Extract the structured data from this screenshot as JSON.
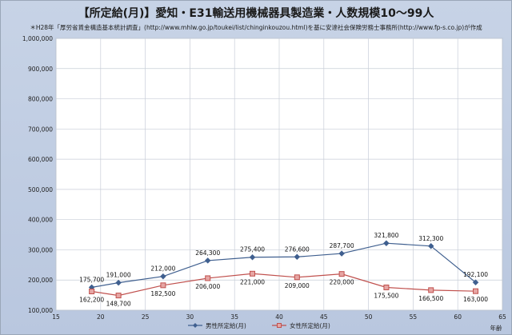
{
  "title": "【所定給(月)】愛知・E31輸送用機械器具製造業・人数規模10～99人",
  "source": "＊H28年「厚労省賃金構造基本統計調査」(http://www.mhlw.go.jp/toukei/list/chinginkouzou.html)を基に安達社会保険労務士事務所(http://www.fp-s.co.jp)が作成",
  "colors": {
    "background": "#bccadf",
    "plot_background": "#ffffff",
    "series_male": "#3f5f8f",
    "series_female": "#c0504d"
  },
  "chart_data": {
    "type": "line",
    "title": "【所定給(月)】愛知・E31輸送用機械器具製造業・人数規模10～99人",
    "xlabel": "年齢",
    "ylabel": "",
    "xlim": [
      15,
      65
    ],
    "ylim": [
      100000,
      1000000
    ],
    "x_ticks": [
      15,
      20,
      25,
      30,
      35,
      40,
      45,
      50,
      55,
      60,
      65
    ],
    "y_ticks": [
      100000,
      200000,
      300000,
      400000,
      500000,
      600000,
      700000,
      800000,
      900000,
      1000000
    ],
    "x_tick_labels": [
      "15",
      "20",
      "25",
      "30",
      "35",
      "40",
      "45",
      "50",
      "55",
      "60",
      "65"
    ],
    "y_tick_labels": [
      "100,000",
      "200,000",
      "300,000",
      "400,000",
      "500,000",
      "600,000",
      "700,000",
      "800,000",
      "900,000",
      "1,000,000"
    ],
    "grid": true,
    "legend_position": "bottom",
    "series": [
      {
        "name": "男性所定給(月)",
        "marker": "diamond",
        "x": [
          19,
          22,
          27,
          32,
          37,
          42,
          47,
          52,
          57,
          62
        ],
        "y": [
          175700,
          191000,
          212000,
          264300,
          275400,
          276600,
          287700,
          321800,
          312300,
          192100
        ],
        "labels": [
          "175,700",
          "191,000",
          "212,000",
          "264,300",
          "275,400",
          "276,600",
          "287,700",
          "321,800",
          "312,300",
          "192,100"
        ]
      },
      {
        "name": "女性所定給(月)",
        "marker": "square",
        "x": [
          19,
          22,
          27,
          32,
          37,
          42,
          47,
          52,
          57,
          62
        ],
        "y": [
          162200,
          148700,
          182500,
          206000,
          221000,
          209000,
          220000,
          175500,
          166500,
          163000
        ],
        "labels": [
          "162,200",
          "148,700",
          "182,500",
          "206,000",
          "221,000",
          "209,000",
          "220,000",
          "175,500",
          "166,500",
          "163,000"
        ]
      }
    ]
  }
}
